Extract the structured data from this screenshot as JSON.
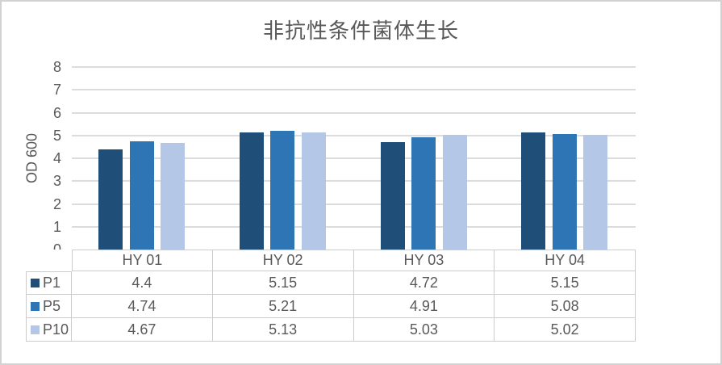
{
  "window": {
    "background": "#ffffff",
    "border_color": "#d2d2d2",
    "text_color": "#595959",
    "gridline_color": "#dcdcdc",
    "table_border_color": "#cccccc"
  },
  "chart_data": {
    "type": "bar",
    "title": "非抗性条件菌体生长",
    "xlabel": "",
    "ylabel": "OD 600",
    "categories": [
      "HY 01",
      "HY 02",
      "HY 03",
      "HY 04"
    ],
    "series": [
      {
        "name": "P1",
        "color": "#1F4E79",
        "values": [
          4.4,
          5.15,
          4.72,
          5.15
        ]
      },
      {
        "name": "P5",
        "color": "#2E75B6",
        "values": [
          4.74,
          5.21,
          4.91,
          5.08
        ]
      },
      {
        "name": "P10",
        "color": "#B4C7E7",
        "values": [
          4.67,
          5.13,
          5.03,
          5.02
        ]
      }
    ],
    "ylim": [
      0,
      8
    ],
    "yticks": [
      0,
      1,
      2,
      3,
      4,
      5,
      6,
      7,
      8
    ],
    "grid": true,
    "legend_position": "data-table-left",
    "data_table": true
  }
}
